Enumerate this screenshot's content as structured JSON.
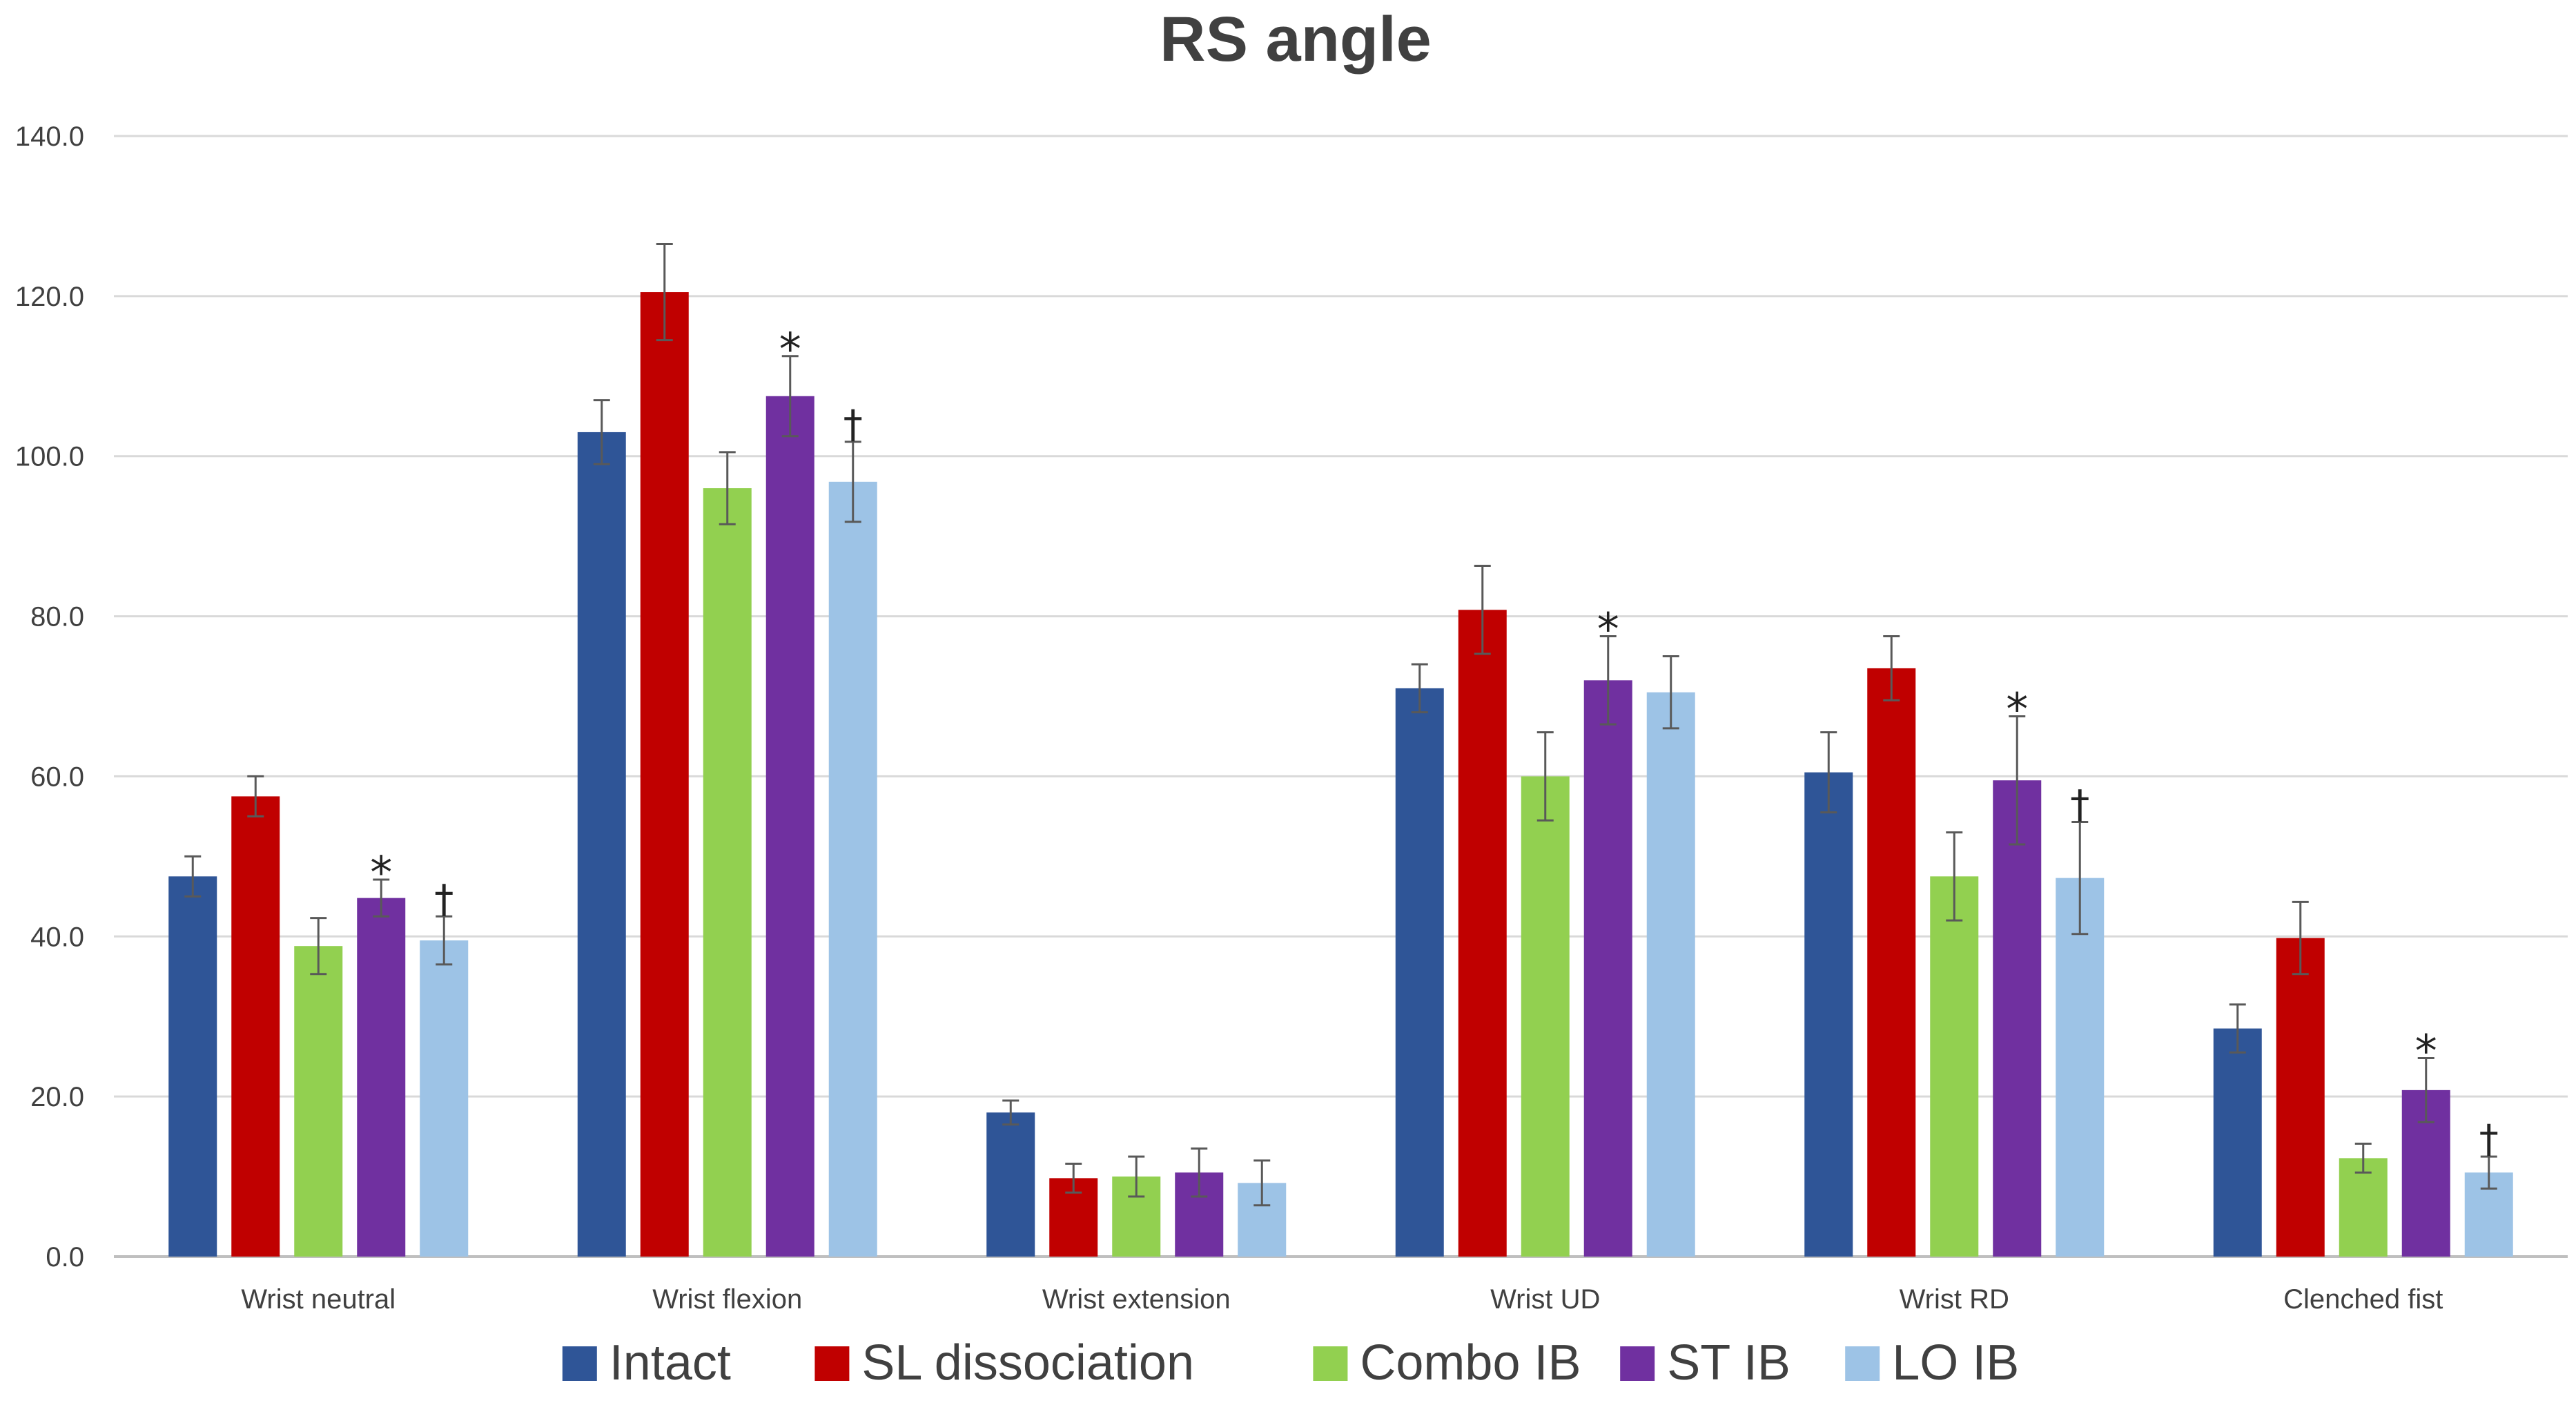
{
  "chart_data": {
    "type": "bar",
    "title": "RS angle",
    "xlabel": "",
    "ylabel": "",
    "ylim": [
      0,
      140
    ],
    "y_ticks": [
      "0.0",
      "20.0",
      "40.0",
      "60.0",
      "80.0",
      "100.0",
      "120.0",
      "140.0"
    ],
    "grid": true,
    "legend_position": "bottom",
    "categories": [
      "Wrist neutral",
      "Wrist flexion",
      "Wrist extension",
      "Wrist UD",
      "Wrist RD",
      "Clenched fist"
    ],
    "series": [
      {
        "name": "Intact",
        "color": "#2f5597",
        "values": [
          47.5,
          103.0,
          18.0,
          71.0,
          60.5,
          28.5
        ],
        "errors": [
          2.5,
          4.0,
          1.5,
          3.0,
          5.0,
          3.0
        ],
        "marks": [
          "",
          "",
          "",
          "",
          "",
          ""
        ]
      },
      {
        "name": "SL dissociation",
        "color": "#c00000",
        "values": [
          57.5,
          120.5,
          9.8,
          80.8,
          73.5,
          39.8
        ],
        "errors": [
          2.5,
          6.0,
          1.8,
          5.5,
          4.0,
          4.5
        ],
        "marks": [
          "",
          "",
          "",
          "",
          "",
          ""
        ]
      },
      {
        "name": "Combo IB",
        "color": "#92d050",
        "values": [
          38.8,
          96.0,
          10.0,
          60.0,
          47.5,
          12.3
        ],
        "errors": [
          3.5,
          4.5,
          2.5,
          5.5,
          5.5,
          1.8
        ],
        "marks": [
          "",
          "",
          "",
          "",
          "",
          ""
        ]
      },
      {
        "name": "ST IB",
        "color": "#7030a0",
        "values": [
          44.8,
          107.5,
          10.5,
          72.0,
          59.5,
          20.8
        ],
        "errors": [
          2.3,
          5.0,
          3.0,
          5.5,
          8.0,
          4.0
        ],
        "marks": [
          "*",
          "*",
          "",
          "*",
          "*",
          "*"
        ]
      },
      {
        "name": "LO IB",
        "color": "#9dc3e6",
        "values": [
          39.5,
          96.8,
          9.2,
          70.5,
          47.3,
          10.5
        ],
        "errors": [
          3.0,
          5.0,
          2.8,
          4.5,
          7.0,
          2.0
        ],
        "marks": [
          "†",
          "†",
          "",
          "",
          "†",
          "†"
        ]
      }
    ]
  }
}
